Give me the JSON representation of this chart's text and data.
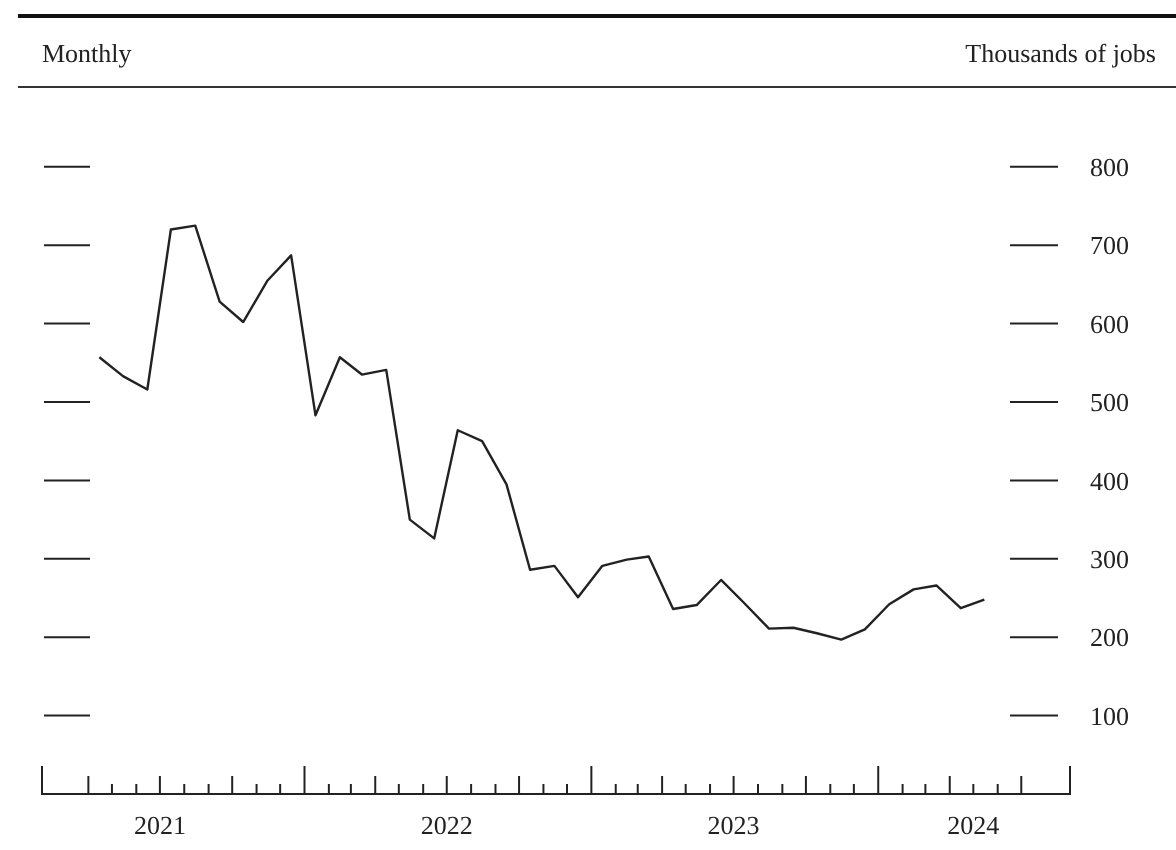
{
  "chart_data": {
    "type": "line",
    "title": "Monthly",
    "ylabel": "Thousands of jobs",
    "x": [
      "2021-04-15",
      "2021-05-15",
      "2021-06-15",
      "2021-07-15",
      "2021-08-15",
      "2021-09-15",
      "2021-10-15",
      "2021-11-15",
      "2021-12-15",
      "2022-01-15",
      "2022-02-15",
      "2022-03-15",
      "2022-04-15",
      "2022-05-15",
      "2022-06-15",
      "2022-07-15",
      "2022-08-15",
      "2022-09-15",
      "2022-10-15",
      "2022-11-15",
      "2022-12-15",
      "2023-01-15",
      "2023-02-15",
      "2023-03-15",
      "2023-04-15",
      "2023-05-15",
      "2023-06-15",
      "2023-07-15",
      "2023-08-15",
      "2023-09-15",
      "2023-10-15",
      "2023-11-15",
      "2023-12-15",
      "2024-01-15",
      "2024-02-15",
      "2024-03-15",
      "2024-04-15",
      "2024-05-15"
    ],
    "series": [
      {
        "color": "#222222",
        "values": [
          557,
          533,
          516,
          720,
          725,
          628,
          602,
          655,
          687,
          483,
          557,
          535,
          541,
          350,
          326,
          464,
          450,
          395,
          286,
          291,
          251,
          291,
          299,
          303,
          236,
          241,
          273,
          243,
          211,
          212,
          205,
          197,
          210,
          242,
          261,
          266,
          237,
          248
        ]
      }
    ],
    "xlim": [
      "2021-02-01",
      "2024-09-01"
    ],
    "xticks": [
      {
        "value": "2021-04-01",
        "label": null
      },
      {
        "value": "2021-05-01",
        "label": null
      },
      {
        "value": "2021-06-01",
        "label": null
      },
      {
        "value": "2021-07-01",
        "label": "2021"
      },
      {
        "value": "2021-08-01",
        "label": null
      },
      {
        "value": "2021-09-01",
        "label": null
      },
      {
        "value": "2021-10-01",
        "label": null
      },
      {
        "value": "2021-11-01",
        "label": null
      },
      {
        "value": "2021-12-01",
        "label": null
      },
      {
        "value": "2022-01-01",
        "label": null
      },
      {
        "value": "2022-02-01",
        "label": null
      },
      {
        "value": "2022-03-01",
        "label": null
      },
      {
        "value": "2022-04-01",
        "label": null
      },
      {
        "value": "2022-05-01",
        "label": null
      },
      {
        "value": "2022-06-01",
        "label": null
      },
      {
        "value": "2022-07-01",
        "label": "2022"
      },
      {
        "value": "2022-08-01",
        "label": null
      },
      {
        "value": "2022-09-01",
        "label": null
      },
      {
        "value": "2022-10-01",
        "label": null
      },
      {
        "value": "2022-11-01",
        "label": null
      },
      {
        "value": "2022-12-01",
        "label": null
      },
      {
        "value": "2023-01-01",
        "label": null
      },
      {
        "value": "2023-02-01",
        "label": null
      },
      {
        "value": "2023-03-01",
        "label": null
      },
      {
        "value": "2023-04-01",
        "label": null
      },
      {
        "value": "2023-05-01",
        "label": null
      },
      {
        "value": "2023-06-01",
        "label": null
      },
      {
        "value": "2023-07-01",
        "label": "2023"
      },
      {
        "value": "2023-08-01",
        "label": null
      },
      {
        "value": "2023-09-01",
        "label": null
      },
      {
        "value": "2023-10-01",
        "label": null
      },
      {
        "value": "2023-11-01",
        "label": null
      },
      {
        "value": "2023-12-01",
        "label": null
      },
      {
        "value": "2024-01-01",
        "label": null
      },
      {
        "value": "2024-02-01",
        "label": null
      },
      {
        "value": "2024-03-01",
        "label": null
      },
      {
        "value": "2024-04-01",
        "label": null
      },
      {
        "value": "2024-05-01",
        "label": "2024"
      },
      {
        "value": "2024-06-01",
        "label": null
      },
      {
        "value": "2024-07-01",
        "label": null
      }
    ],
    "ylim": [
      0,
      800
    ],
    "yticks": [
      100,
      200,
      300,
      400,
      500,
      600,
      700,
      800
    ],
    "grid": false,
    "marker": "none",
    "line_style": "solid"
  }
}
